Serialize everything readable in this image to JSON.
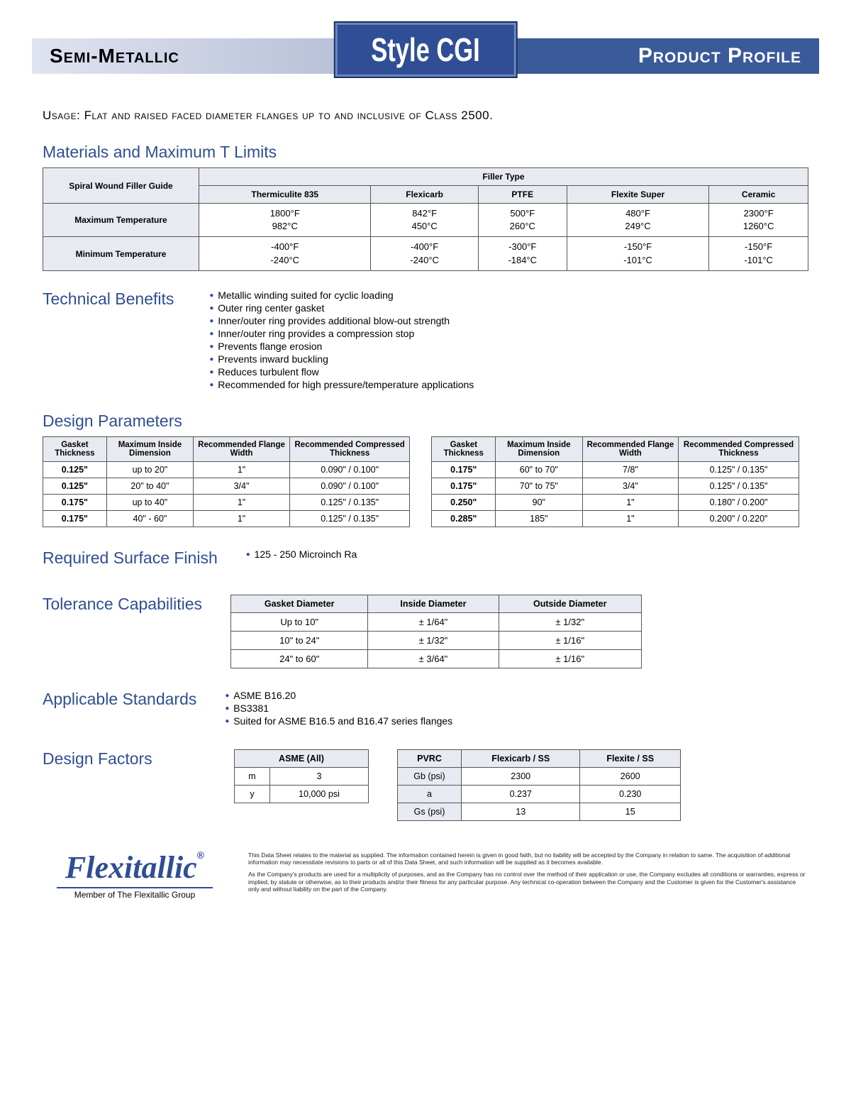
{
  "header": {
    "left": "Semi-Metallic",
    "center": "Style CGI",
    "right": "Product Profile"
  },
  "usage": {
    "label": "Usage:",
    "text": "Flat and raised faced diameter flanges up to and inclusive of Class 2500."
  },
  "materials": {
    "title": "Materials and Maximum T Limits",
    "rowHeaderTop": "Spiral Wound Filler Guide",
    "fillerTypeLabel": "Filler Type",
    "columns": [
      "Thermiculite 835",
      "Flexicarb",
      "PTFE",
      "Flexite Super",
      "Ceramic"
    ],
    "rows": [
      {
        "label": "Maximum Temperature",
        "vals": [
          [
            "1800°F",
            "982°C"
          ],
          [
            "842°F",
            "450°C"
          ],
          [
            "500°F",
            "260°C"
          ],
          [
            "480°F",
            "249°C"
          ],
          [
            "2300°F",
            "1260°C"
          ]
        ]
      },
      {
        "label": "Minimum Temperature",
        "vals": [
          [
            "-400°F",
            "-240°C"
          ],
          [
            "-400°F",
            "-240°C"
          ],
          [
            "-300°F",
            "-184°C"
          ],
          [
            "-150°F",
            "-101°C"
          ],
          [
            "-150°F",
            "-101°C"
          ]
        ]
      }
    ]
  },
  "benefits": {
    "title": "Technical Benefits",
    "items": [
      "Metallic winding suited for cyclic loading",
      "Outer ring center gasket",
      "Inner/outer ring provides additional blow-out strength",
      "Inner/outer ring provides a compression stop",
      "Prevents flange erosion",
      "Prevents inward buckling",
      "Reduces turbulent flow",
      "Recommended for high pressure/temperature applications"
    ]
  },
  "design": {
    "title": "Design Parameters",
    "headers": [
      "Gasket Thickness",
      "Maximum Inside Dimension",
      "Recommended Flange Width",
      "Recommended Compressed Thickness"
    ],
    "left": [
      [
        "0.125\"",
        "up to 20\"",
        "1\"",
        "0.090\" / 0.100\""
      ],
      [
        "0.125\"",
        "20\" to 40\"",
        "3/4\"",
        "0.090\" / 0.100\""
      ],
      [
        "0.175\"",
        "up to 40\"",
        "1\"",
        "0.125\" / 0.135\""
      ],
      [
        "0.175\"",
        "40\" - 60\"",
        "1\"",
        "0.125\" / 0.135\""
      ]
    ],
    "right": [
      [
        "0.175\"",
        "60\" to 70\"",
        "7/8\"",
        "0.125\" / 0.135\""
      ],
      [
        "0.175\"",
        "70\" to 75\"",
        "3/4\"",
        "0.125\" / 0.135\""
      ],
      [
        "0.250\"",
        "90\"",
        "1\"",
        "0.180\" / 0.200\""
      ],
      [
        "0.285\"",
        "185\"",
        "1\"",
        "0.200\" / 0.220\""
      ]
    ]
  },
  "surface": {
    "title": "Required Surface Finish",
    "item": "125 - 250 Microinch Ra"
  },
  "tolerance": {
    "title": "Tolerance Capabilities",
    "headers": [
      "Gasket Diameter",
      "Inside Diameter",
      "Outside Diameter"
    ],
    "rows": [
      [
        "Up to 10\"",
        "± 1/64\"",
        "± 1/32\""
      ],
      [
        "10\" to 24\"",
        "± 1/32\"",
        "± 1/16\""
      ],
      [
        "24\" to 60\"",
        "± 3/64\"",
        "± 1/16\""
      ]
    ]
  },
  "standards": {
    "title": "Applicable Standards",
    "items": [
      "ASME B16.20",
      "BS3381",
      "Suited for ASME B16.5 and B16.47 series flanges"
    ]
  },
  "factors": {
    "title": "Design Factors",
    "asme": {
      "header": "ASME (All)",
      "rows": [
        [
          "m",
          "3"
        ],
        [
          "y",
          "10,000 psi"
        ]
      ]
    },
    "pvrc": {
      "headers": [
        "PVRC",
        "Flexicarb / SS",
        "Flexite / SS"
      ],
      "rows": [
        [
          "Gb (psi)",
          "2300",
          "2600"
        ],
        [
          "a",
          "0.237",
          "0.230"
        ],
        [
          "Gs (psi)",
          "13",
          "15"
        ]
      ]
    }
  },
  "footer": {
    "logo": "Flexitallic",
    "logoReg": "®",
    "logoSub": "Member of The Flexitallic Group",
    "disclaimer1": "This Data Sheet relates to the material as supplied. The information contained herein is given in good faith, but no liability will be accepted by the Company in relation to same. The acquisition of additional information may necessitate revisions to parts or all of this Data Sheet, and such information will be supplied as it becomes available.",
    "disclaimer2": "As the Company's products are used for a multiplicity of purposes, and as the Company has no control over the method of their application or use, the Company excludes all conditions or warranties, express or implied, by statute or otherwise, as to their products and/or their fitness for any particular purpose. Any technical co-operation between the Company and the Customer is given for the Customer's assistance only and without liability on the part of the Company."
  },
  "colors": {
    "primary": "#2f4e95",
    "headerBg": "#e8eaf1",
    "border": "#555"
  }
}
